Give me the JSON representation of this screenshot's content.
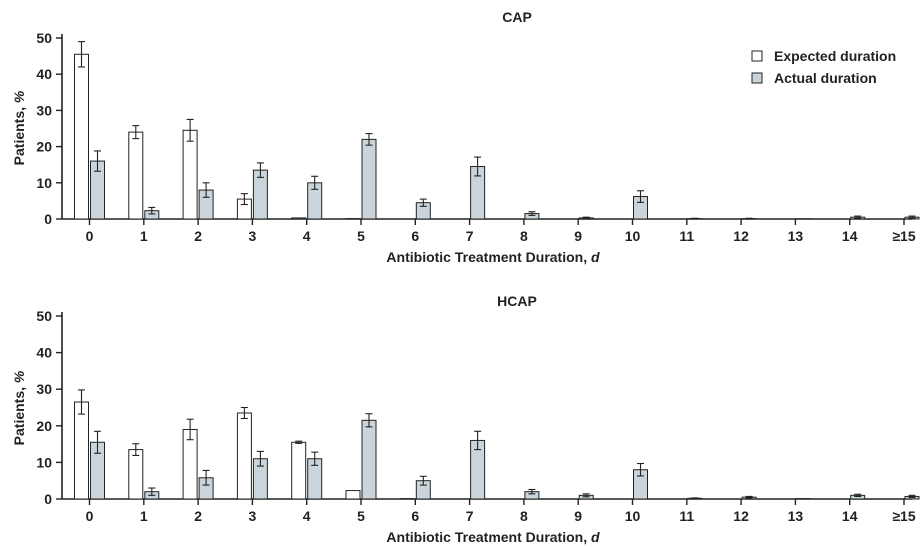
{
  "legend": {
    "placement": "top-right",
    "items": [
      {
        "label": "Expected duration",
        "color": "#ffffff"
      },
      {
        "label": "Actual duration",
        "color": "#c9d4db"
      }
    ]
  },
  "chart_data": [
    {
      "type": "bar",
      "title": "CAP",
      "xlabel": "Antibiotic Treatment Duration, ",
      "xlabel_unit": "d",
      "ylabel": "Patients, ",
      "ylabel_unit": "%",
      "ylim": [
        0,
        50
      ],
      "yticks": [
        0,
        10,
        20,
        30,
        40,
        50
      ],
      "grid": false,
      "categories": [
        "0",
        "1",
        "2",
        "3",
        "4",
        "5",
        "6",
        "7",
        "8",
        "9",
        "10",
        "11",
        "12",
        "13",
        "14",
        "≥15"
      ],
      "series": [
        {
          "name": "Expected duration",
          "color": "#ffffff",
          "values": [
            45.5,
            24.0,
            24.5,
            5.5,
            0.3,
            0.1,
            0,
            0,
            0,
            0,
            0,
            0,
            0,
            0,
            0,
            0
          ],
          "errors": [
            3.5,
            1.8,
            3.0,
            1.5,
            0,
            0,
            0,
            0,
            0,
            0,
            0,
            0,
            0,
            0,
            0,
            0
          ]
        },
        {
          "name": "Actual duration",
          "color": "#c9d4db",
          "values": [
            16.0,
            2.3,
            8.0,
            13.5,
            10.0,
            22.0,
            4.5,
            14.5,
            1.5,
            0.3,
            6.2,
            0.1,
            0.1,
            0.05,
            0.5,
            0.5
          ],
          "errors": [
            2.8,
            0.9,
            2.0,
            2.0,
            1.8,
            1.6,
            1.0,
            2.6,
            0.5,
            0.2,
            1.6,
            0.1,
            0.1,
            0,
            0.3,
            0.3
          ]
        }
      ]
    },
    {
      "type": "bar",
      "title": "HCAP",
      "xlabel": "Antibiotic Treatment Duration, ",
      "xlabel_unit": "d",
      "ylabel": "Patients, ",
      "ylabel_unit": "%",
      "ylim": [
        0,
        50
      ],
      "yticks": [
        0,
        10,
        20,
        30,
        40,
        50
      ],
      "grid": false,
      "categories": [
        "0",
        "1",
        "2",
        "3",
        "4",
        "5",
        "6",
        "7",
        "8",
        "9",
        "10",
        "11",
        "12",
        "13",
        "14",
        "≥15"
      ],
      "series": [
        {
          "name": "Expected duration",
          "color": "#ffffff",
          "values": [
            26.5,
            13.5,
            19.0,
            23.5,
            15.5,
            2.3,
            0.1,
            0,
            0,
            0,
            0,
            0,
            0,
            0,
            0,
            0
          ],
          "errors": [
            3.3,
            1.6,
            2.8,
            1.5,
            0.3,
            0,
            0,
            0,
            0,
            0,
            0,
            0,
            0,
            0,
            0,
            0
          ]
        },
        {
          "name": "Actual duration",
          "color": "#c9d4db",
          "values": [
            15.5,
            2.0,
            5.8,
            11.0,
            11.0,
            21.5,
            5.0,
            16.0,
            2.0,
            1.0,
            8.0,
            0.2,
            0.5,
            0.1,
            1.0,
            0.7
          ],
          "errors": [
            3.0,
            1.0,
            2.0,
            2.0,
            1.8,
            1.8,
            1.2,
            2.5,
            0.6,
            0.4,
            1.7,
            0.1,
            0.2,
            0,
            0.3,
            0.3
          ]
        }
      ]
    }
  ]
}
